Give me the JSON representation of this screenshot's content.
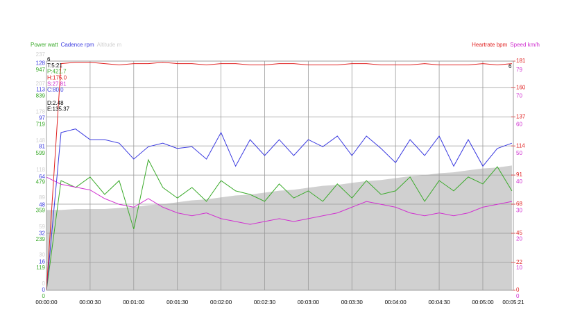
{
  "chart_data": {
    "type": "multi-axis-line",
    "x": [
      0,
      10,
      20,
      30,
      40,
      50,
      60,
      70,
      80,
      90,
      100,
      110,
      120,
      130,
      140,
      150,
      160,
      170,
      180,
      190,
      200,
      210,
      220,
      230,
      240,
      250,
      260,
      270,
      280,
      290,
      300,
      310,
      320
    ],
    "xlim": [
      0,
      321
    ],
    "xticks": [
      {
        "value": 0,
        "label": "00:00:00"
      },
      {
        "value": 30,
        "label": "00:00:30"
      },
      {
        "value": 60,
        "label": "00:01:00"
      },
      {
        "value": 90,
        "label": "00:01:30"
      },
      {
        "value": 120,
        "label": "00:02:00"
      },
      {
        "value": 150,
        "label": "00:02:30"
      },
      {
        "value": 180,
        "label": "00:03:00"
      },
      {
        "value": 210,
        "label": "00:03:30"
      },
      {
        "value": 240,
        "label": "00:04:00"
      },
      {
        "value": 270,
        "label": "00:04:30"
      },
      {
        "value": 300,
        "label": "00:05:00"
      },
      {
        "value": 321,
        "label": "00:05:21"
      }
    ],
    "grid": true,
    "series": [
      {
        "name": "Power watt",
        "color": "#3aaa2a",
        "side": "left",
        "style": "line",
        "ylim": [
          0,
          959
        ],
        "yticks": [
          0,
          119,
          239,
          359,
          479,
          599,
          719,
          839,
          947
        ],
        "values": [
          0,
          459,
          430,
          474,
          401,
          459,
          256,
          546,
          430,
          386,
          430,
          372,
          459,
          416,
          401,
          372,
          445,
          386,
          416,
          372,
          445,
          386,
          459,
          401,
          416,
          474,
          372,
          459,
          416,
          474,
          445,
          517,
          416
        ]
      },
      {
        "name": "Cadence rpm",
        "color": "#3a3ae0",
        "side": "left",
        "style": "line",
        "ylim": [
          0,
          129.3
        ],
        "yticks": [
          0,
          16,
          32,
          48,
          64,
          81,
          97,
          113,
          128
        ],
        "values": [
          0,
          89,
          91,
          85,
          85,
          83,
          74,
          81,
          83,
          80,
          81,
          74,
          89,
          70,
          85,
          76,
          85,
          76,
          85,
          81,
          87,
          76,
          87,
          80,
          72,
          85,
          76,
          87,
          70,
          85,
          70,
          80,
          83
        ]
      },
      {
        "name": "Altitude m",
        "color": "#d0d0d0",
        "side": "left",
        "style": "area",
        "ylim": [
          0,
          237
        ],
        "yticks": [
          0,
          30,
          59,
          89,
          118,
          148,
          178,
          207,
          237
        ],
        "values": [
          83,
          83,
          84,
          84,
          84,
          85,
          86,
          88,
          89,
          91,
          93,
          94,
          96,
          98,
          99,
          101,
          103,
          104,
          106,
          108,
          109,
          111,
          113,
          114,
          116,
          118,
          119,
          121,
          122,
          124,
          126,
          127,
          129
        ]
      },
      {
        "name": "Heartrate bpm",
        "color": "#e02020",
        "side": "right",
        "style": "line",
        "ylim": [
          0,
          181
        ],
        "yticks": [
          0,
          22,
          45,
          68,
          91,
          114,
          137,
          160,
          181
        ],
        "values": [
          0,
          179,
          180,
          180,
          179,
          178,
          179,
          179,
          180,
          179,
          179,
          178,
          179,
          179,
          178,
          178,
          179,
          179,
          178,
          178,
          178,
          179,
          179,
          178,
          178,
          178,
          179,
          178,
          178,
          178,
          179,
          178,
          179
        ]
      },
      {
        "name": "Speed km/h",
        "color": "#d030d0",
        "side": "right",
        "style": "line",
        "ylim": [
          0,
          80
        ],
        "yticks": [
          0,
          10,
          20,
          30,
          40,
          50,
          60,
          70,
          79
        ],
        "values": [
          39.5,
          37,
          36,
          35,
          32,
          30,
          29,
          32,
          29,
          27,
          26,
          27,
          25,
          24,
          23,
          24,
          25,
          24,
          25,
          26,
          27,
          29,
          31,
          30,
          29,
          27,
          26,
          27,
          26,
          27,
          29,
          30,
          31
        ]
      }
    ],
    "info": [
      {
        "text": "6",
        "color": "#000000"
      },
      {
        "text": "T:5:21",
        "color": "#000000"
      },
      {
        "text": "P:421.7",
        "color": "#3aaa2a"
      },
      {
        "text": "H:175.0",
        "color": "#e02020"
      },
      {
        "text": "S:27.81",
        "color": "#d030d0"
      },
      {
        "text": "C:80.0",
        "color": "#3a3ae0"
      },
      {
        "text": "D:2.48",
        "color": "#000000"
      },
      {
        "text": "E:135.37",
        "color": "#000000"
      }
    ],
    "marker_label": "6"
  }
}
